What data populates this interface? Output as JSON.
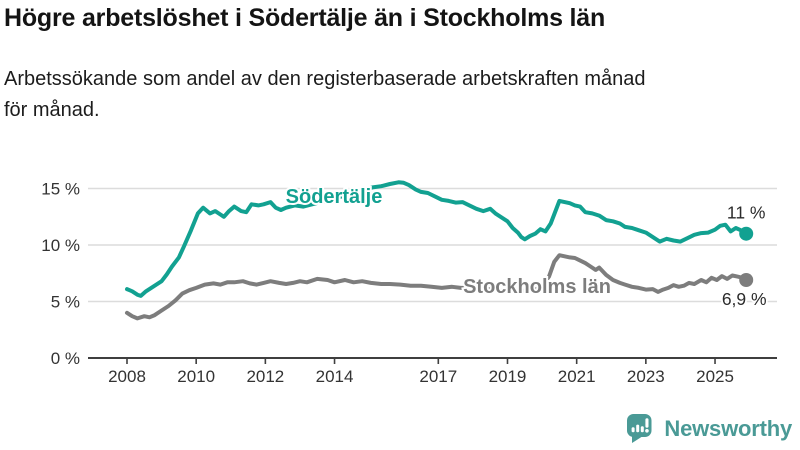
{
  "header": {
    "title": "Högre arbetslöshet i Södertälje än i Stockholms län",
    "subtitle_lines": [
      "Arbetssökande som andel av den registerbaserade arbetskraften månad",
      "för månad."
    ]
  },
  "branding": {
    "logo_text": "Newsworthy",
    "logo_icon": "newsworthy-speech-bubble-bar-chart",
    "brand_color": "#4a9a96"
  },
  "chart_data": {
    "type": "line",
    "unit": "%",
    "grid": "horizontal",
    "legend_position": "inline-labels",
    "x_axis": {
      "ticks": [
        2008,
        2010,
        2012,
        2014,
        2017,
        2019,
        2021,
        2023,
        2025
      ],
      "tick_labels": [
        "2008",
        "2010",
        "2012",
        "2014",
        "2017",
        "2019",
        "2021",
        "2023",
        "2025"
      ],
      "range": [
        2006.9,
        2026.8
      ]
    },
    "y_axis": {
      "ticks": [
        0,
        5,
        10,
        15
      ],
      "tick_labels": [
        "0 %",
        "5 %",
        "10 %",
        "15 %"
      ],
      "range": [
        0,
        16.2
      ]
    },
    "series": [
      {
        "id": "sodertalje",
        "name": "Södertälje",
        "color": "#12a191",
        "end_label": "11 %",
        "end_value": 11.0,
        "points": [
          [
            2008.0,
            6.1
          ],
          [
            2008.15,
            5.9
          ],
          [
            2008.3,
            5.6
          ],
          [
            2008.4,
            5.5
          ],
          [
            2008.55,
            5.9
          ],
          [
            2008.7,
            6.2
          ],
          [
            2008.85,
            6.5
          ],
          [
            2009.0,
            6.8
          ],
          [
            2009.15,
            7.4
          ],
          [
            2009.3,
            8.1
          ],
          [
            2009.5,
            8.9
          ],
          [
            2009.65,
            9.9
          ],
          [
            2009.85,
            11.3
          ],
          [
            2010.05,
            12.8
          ],
          [
            2010.2,
            13.3
          ],
          [
            2010.4,
            12.8
          ],
          [
            2010.55,
            13.0
          ],
          [
            2010.7,
            12.7
          ],
          [
            2010.8,
            12.5
          ],
          [
            2010.95,
            13.0
          ],
          [
            2011.1,
            13.4
          ],
          [
            2011.3,
            13.0
          ],
          [
            2011.45,
            12.9
          ],
          [
            2011.6,
            13.6
          ],
          [
            2011.8,
            13.5
          ],
          [
            2011.95,
            13.6
          ],
          [
            2012.15,
            13.8
          ],
          [
            2012.3,
            13.3
          ],
          [
            2012.45,
            13.1
          ],
          [
            2012.6,
            13.3
          ],
          [
            2012.85,
            13.5
          ],
          [
            2013.1,
            13.4
          ],
          [
            2013.35,
            13.6
          ],
          [
            2013.6,
            13.8
          ],
          [
            2013.85,
            14.0
          ],
          [
            2014.1,
            14.2
          ],
          [
            2014.35,
            14.4
          ],
          [
            2014.6,
            14.7
          ],
          [
            2014.85,
            14.9
          ],
          [
            2015.1,
            15.1
          ],
          [
            2015.35,
            15.2
          ],
          [
            2015.6,
            15.4
          ],
          [
            2015.85,
            15.55
          ],
          [
            2016.0,
            15.5
          ],
          [
            2016.15,
            15.3
          ],
          [
            2016.35,
            14.9
          ],
          [
            2016.5,
            14.7
          ],
          [
            2016.7,
            14.6
          ],
          [
            2016.9,
            14.3
          ],
          [
            2017.1,
            14.0
          ],
          [
            2017.3,
            13.9
          ],
          [
            2017.5,
            13.75
          ],
          [
            2017.7,
            13.8
          ],
          [
            2017.9,
            13.5
          ],
          [
            2018.1,
            13.2
          ],
          [
            2018.3,
            13.0
          ],
          [
            2018.5,
            13.2
          ],
          [
            2018.65,
            12.8
          ],
          [
            2018.85,
            12.4
          ],
          [
            2019.0,
            12.1
          ],
          [
            2019.15,
            11.5
          ],
          [
            2019.3,
            11.1
          ],
          [
            2019.4,
            10.7
          ],
          [
            2019.5,
            10.5
          ],
          [
            2019.65,
            10.8
          ],
          [
            2019.8,
            11.0
          ],
          [
            2019.95,
            11.4
          ],
          [
            2020.1,
            11.2
          ],
          [
            2020.25,
            11.9
          ],
          [
            2020.4,
            13.1
          ],
          [
            2020.5,
            13.9
          ],
          [
            2020.65,
            13.8
          ],
          [
            2020.8,
            13.7
          ],
          [
            2020.95,
            13.5
          ],
          [
            2021.1,
            13.4
          ],
          [
            2021.25,
            12.9
          ],
          [
            2021.45,
            12.8
          ],
          [
            2021.65,
            12.6
          ],
          [
            2021.85,
            12.2
          ],
          [
            2022.05,
            12.1
          ],
          [
            2022.25,
            11.9
          ],
          [
            2022.4,
            11.6
          ],
          [
            2022.6,
            11.5
          ],
          [
            2022.8,
            11.3
          ],
          [
            2023.0,
            11.1
          ],
          [
            2023.2,
            10.7
          ],
          [
            2023.4,
            10.3
          ],
          [
            2023.6,
            10.55
          ],
          [
            2023.8,
            10.4
          ],
          [
            2024.0,
            10.3
          ],
          [
            2024.2,
            10.6
          ],
          [
            2024.4,
            10.9
          ],
          [
            2024.6,
            11.05
          ],
          [
            2024.8,
            11.1
          ],
          [
            2025.0,
            11.35
          ],
          [
            2025.15,
            11.7
          ],
          [
            2025.3,
            11.8
          ],
          [
            2025.45,
            11.2
          ],
          [
            2025.6,
            11.5
          ],
          [
            2025.75,
            11.3
          ],
          [
            2025.9,
            11.0
          ]
        ]
      },
      {
        "id": "stockholms-lan",
        "name": "Stockholms län",
        "color": "#7d7d7d",
        "end_label": "6,9 %",
        "end_value": 6.9,
        "points": [
          [
            2008.0,
            4.0
          ],
          [
            2008.15,
            3.7
          ],
          [
            2008.3,
            3.5
          ],
          [
            2008.5,
            3.7
          ],
          [
            2008.65,
            3.6
          ],
          [
            2008.8,
            3.8
          ],
          [
            2009.0,
            4.2
          ],
          [
            2009.2,
            4.6
          ],
          [
            2009.4,
            5.1
          ],
          [
            2009.6,
            5.7
          ],
          [
            2009.8,
            6.0
          ],
          [
            2010.0,
            6.2
          ],
          [
            2010.25,
            6.5
          ],
          [
            2010.5,
            6.6
          ],
          [
            2010.7,
            6.5
          ],
          [
            2010.9,
            6.7
          ],
          [
            2011.1,
            6.7
          ],
          [
            2011.35,
            6.8
          ],
          [
            2011.55,
            6.6
          ],
          [
            2011.75,
            6.5
          ],
          [
            2011.95,
            6.65
          ],
          [
            2012.15,
            6.8
          ],
          [
            2012.4,
            6.65
          ],
          [
            2012.6,
            6.55
          ],
          [
            2012.8,
            6.65
          ],
          [
            2013.0,
            6.8
          ],
          [
            2013.2,
            6.7
          ],
          [
            2013.5,
            7.0
          ],
          [
            2013.8,
            6.9
          ],
          [
            2014.0,
            6.7
          ],
          [
            2014.3,
            6.9
          ],
          [
            2014.55,
            6.7
          ],
          [
            2014.8,
            6.8
          ],
          [
            2015.05,
            6.65
          ],
          [
            2015.35,
            6.55
          ],
          [
            2015.6,
            6.55
          ],
          [
            2015.9,
            6.5
          ],
          [
            2016.2,
            6.4
          ],
          [
            2016.5,
            6.4
          ],
          [
            2016.8,
            6.3
          ],
          [
            2017.1,
            6.2
          ],
          [
            2017.4,
            6.3
          ],
          [
            2017.65,
            6.2
          ],
          [
            2017.95,
            6.2
          ],
          [
            2018.2,
            6.1
          ],
          [
            2018.5,
            6.1
          ],
          [
            2018.8,
            6.0
          ],
          [
            2019.1,
            6.0
          ],
          [
            2019.4,
            5.95
          ],
          [
            2019.7,
            6.0
          ],
          [
            2019.95,
            6.2
          ],
          [
            2020.2,
            7.2
          ],
          [
            2020.35,
            8.5
          ],
          [
            2020.5,
            9.1
          ],
          [
            2020.65,
            9.0
          ],
          [
            2020.8,
            8.9
          ],
          [
            2020.95,
            8.85
          ],
          [
            2021.05,
            8.7
          ],
          [
            2021.25,
            8.4
          ],
          [
            2021.4,
            8.1
          ],
          [
            2021.55,
            7.8
          ],
          [
            2021.65,
            8.0
          ],
          [
            2021.85,
            7.35
          ],
          [
            2022.05,
            6.9
          ],
          [
            2022.25,
            6.65
          ],
          [
            2022.4,
            6.5
          ],
          [
            2022.6,
            6.3
          ],
          [
            2022.8,
            6.2
          ],
          [
            2023.0,
            6.05
          ],
          [
            2023.2,
            6.1
          ],
          [
            2023.35,
            5.85
          ],
          [
            2023.5,
            6.05
          ],
          [
            2023.65,
            6.2
          ],
          [
            2023.8,
            6.45
          ],
          [
            2023.95,
            6.3
          ],
          [
            2024.1,
            6.4
          ],
          [
            2024.25,
            6.65
          ],
          [
            2024.4,
            6.55
          ],
          [
            2024.6,
            6.9
          ],
          [
            2024.75,
            6.7
          ],
          [
            2024.9,
            7.1
          ],
          [
            2025.05,
            6.9
          ],
          [
            2025.2,
            7.25
          ],
          [
            2025.35,
            7.0
          ],
          [
            2025.5,
            7.3
          ],
          [
            2025.65,
            7.2
          ],
          [
            2025.8,
            7.1
          ],
          [
            2025.9,
            6.9
          ]
        ]
      }
    ]
  }
}
